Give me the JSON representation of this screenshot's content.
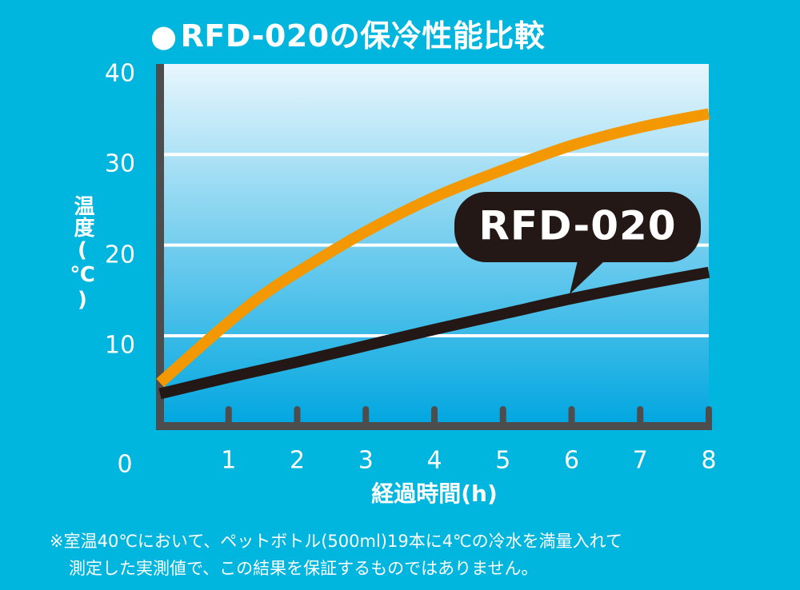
{
  "title": "RFD-020の保冷性能比較",
  "title_bullet": "●",
  "chart_data": {
    "type": "line",
    "title": "RFD-020の保冷性能比較",
    "xlabel": "経過時間(h)",
    "ylabel": "温度(℃)",
    "x_ticks": [
      "1",
      "2",
      "3",
      "4",
      "5",
      "6",
      "7",
      "8"
    ],
    "y_ticks": [
      "0",
      "10",
      "20",
      "30",
      "40"
    ],
    "xlim": [
      0,
      8
    ],
    "ylim": [
      0,
      40
    ],
    "grid": "horizontal",
    "series": [
      {
        "color": "#f39800",
        "x": [
          0,
          0.5,
          1,
          1.5,
          2,
          3,
          4,
          5,
          6,
          7,
          8
        ],
        "y": [
          4.8,
          8.2,
          11.5,
          14.5,
          17,
          21.5,
          25.3,
          28.3,
          31,
          33,
          34.5
        ]
      },
      {
        "name": "RFD-020",
        "color": "#231815",
        "x": [
          0,
          1,
          2,
          3,
          4,
          5,
          6,
          7,
          8
        ],
        "y": [
          3.6,
          5.4,
          7.1,
          8.9,
          10.7,
          12.4,
          14.1,
          15.6,
          17
        ]
      }
    ],
    "annotation": "RFD-020"
  },
  "footnote": {
    "line1": "※室温40℃において、ペットボトル(500ml)19本に4℃の冷水を満量入れて",
    "line2": "測定した実測値で、この結果を保証するものではありません。"
  },
  "colors": {
    "background": "#00b5de",
    "axis": "#4d4d4d",
    "plot_top": "#e8f6fd",
    "plot_bottom": "#00a6e0",
    "orange": "#f39800",
    "black": "#231815"
  }
}
